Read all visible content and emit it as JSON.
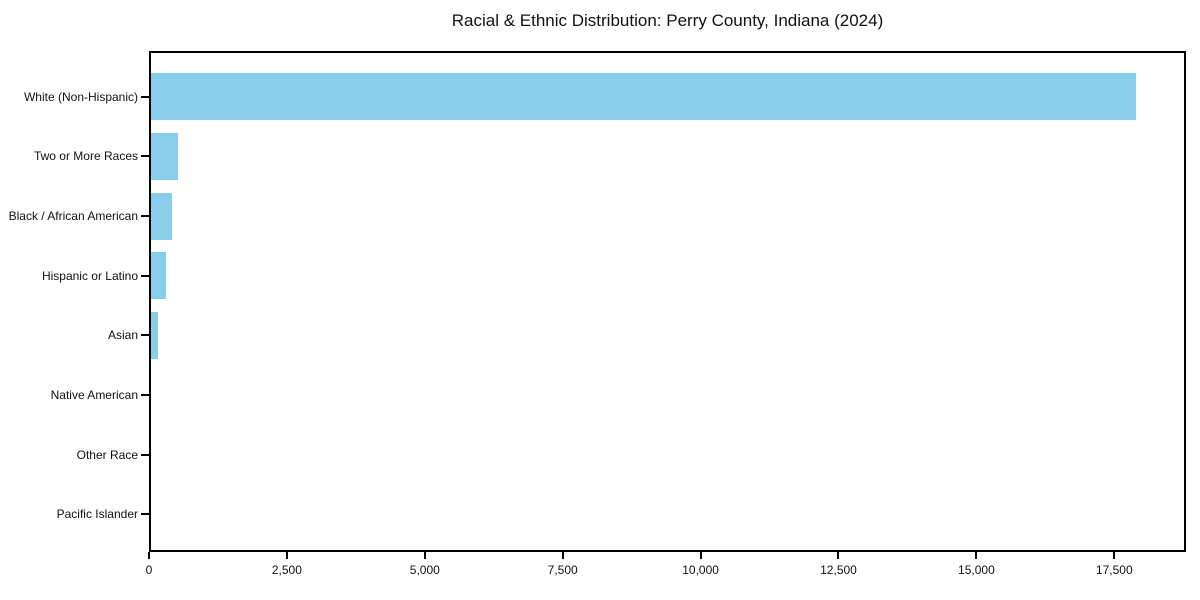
{
  "page": {
    "background_color": "#ffffff"
  },
  "chart_data": {
    "type": "bar",
    "orientation": "horizontal",
    "title": "Racial & Ethnic Distribution: Perry County, Indiana (2024)",
    "categories": [
      "White (Non-Hispanic)",
      "Two or More Races",
      "Black / African American",
      "Hispanic or Latino",
      "Asian",
      "Native American",
      "Other Race",
      "Pacific Islander"
    ],
    "values": [
      17890,
      530,
      410,
      300,
      170,
      30,
      15,
      5
    ],
    "bar_color": "#87CEEB",
    "xlabel": "",
    "ylabel": "",
    "xlim": [
      0,
      18800
    ],
    "xticks": [
      0,
      2500,
      5000,
      7500,
      10000,
      12500,
      15000,
      17500
    ],
    "xtick_labels": [
      "0",
      "2,500",
      "5,000",
      "7,500",
      "10,000",
      "12,500",
      "15,000",
      "17,500"
    ],
    "grid": false,
    "legend": null,
    "spine_color": "#000000",
    "text_color": "#111111"
  }
}
